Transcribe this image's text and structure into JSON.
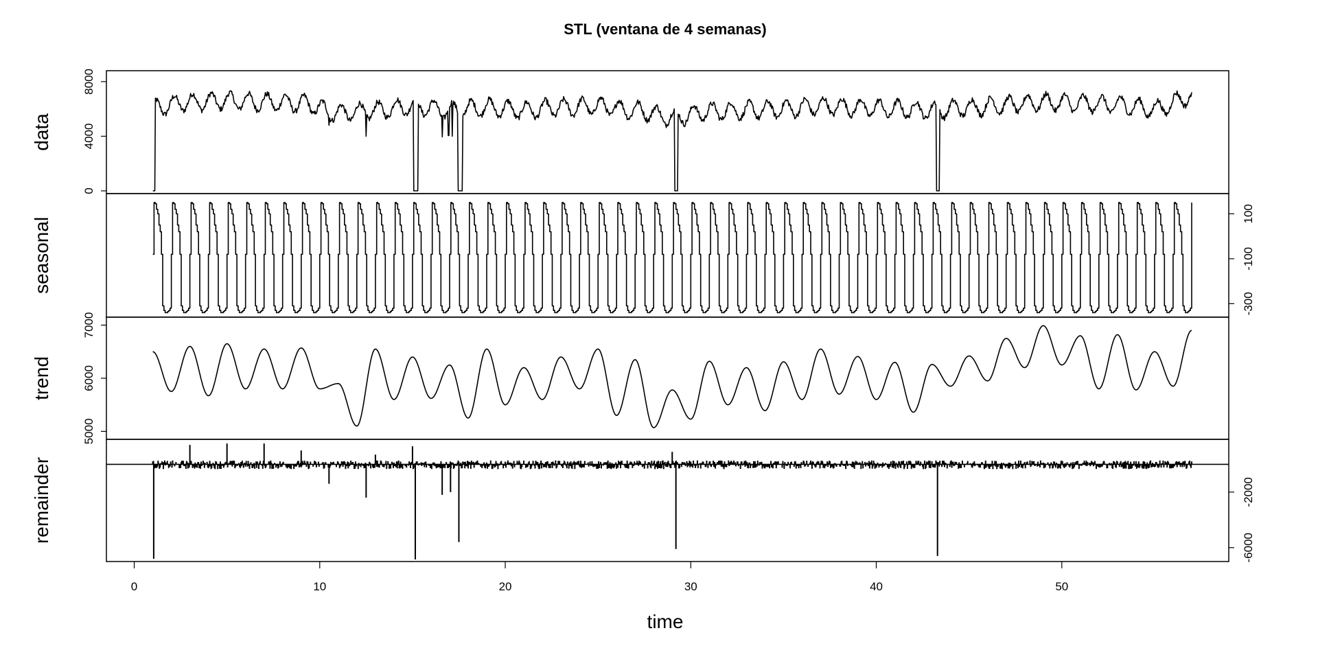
{
  "chart_data": {
    "type": "line",
    "title": "STL (ventana de 4 semanas)",
    "xlabel": "time",
    "x_range": [
      1,
      57
    ],
    "xlim": [
      -1.5,
      59
    ],
    "x_ticks": [
      0,
      10,
      20,
      30,
      40,
      50
    ],
    "x_tick_labels": [
      "0",
      "10",
      "20",
      "30",
      "40",
      "50"
    ],
    "panels": [
      {
        "name": "data",
        "label": "data",
        "axis_side": "left",
        "ylim": [
          -200,
          8800
        ],
        "y_ticks": [
          0,
          4000,
          8000
        ],
        "y_tick_labels": [
          "0",
          "4000",
          "8000"
        ],
        "dropouts": [
          {
            "start": 1.0,
            "end": 1.12,
            "value": 0
          },
          {
            "start": 15.06,
            "end": 15.3,
            "value": 0
          },
          {
            "start": 17.45,
            "end": 17.7,
            "value": 0
          },
          {
            "start": 29.12,
            "end": 29.3,
            "value": 0
          },
          {
            "start": 43.22,
            "end": 43.42,
            "value": 0
          }
        ],
        "dips": [
          {
            "x": 12.5,
            "value": 4000
          },
          {
            "x": 16.6,
            "value": 3950
          },
          {
            "x": 16.95,
            "value": 4050
          },
          {
            "x": 17.15,
            "value": 4000
          },
          {
            "x": 10.5,
            "value": 4800
          }
        ],
        "base_level_points": {
          "x": [
            1,
            3,
            5,
            7,
            9,
            11,
            13,
            15,
            17,
            19,
            21,
            23,
            25,
            27,
            29,
            31,
            33,
            35,
            37,
            39,
            41,
            43,
            45,
            47,
            49,
            51,
            53,
            55,
            57
          ],
          "y": [
            6100,
            6500,
            6600,
            6500,
            6400,
            5700,
            5900,
            6200,
            5900,
            6100,
            5900,
            6100,
            6200,
            5900,
            5400,
            5800,
            5900,
            6000,
            6200,
            6100,
            6000,
            5900,
            6100,
            6300,
            6500,
            6400,
            6300,
            6000,
            6900
          ]
        }
      },
      {
        "name": "seasonal",
        "label": "seasonal",
        "axis_side": "right",
        "ylim": [
          -360,
          190
        ],
        "y_ticks": [
          -300,
          -100,
          100
        ],
        "y_tick_labels": [
          "-300",
          "-100",
          "100"
        ],
        "period_weeks": 1,
        "cycles": 56,
        "weekly_pattern": [
          -80,
          150,
          145,
          120,
          100,
          50,
          20,
          -80,
          -310,
          -330,
          -340,
          -340,
          -335,
          -330,
          -320
        ]
      },
      {
        "name": "trend",
        "label": "trend",
        "axis_side": "left",
        "ylim": [
          4850,
          7150
        ],
        "y_ticks": [
          5000,
          6000,
          7000
        ],
        "y_tick_labels": [
          "5000",
          "6000",
          "7000"
        ],
        "x": [
          1,
          2,
          3,
          4,
          5,
          6,
          7,
          8,
          9,
          10,
          11,
          12,
          13,
          14,
          15,
          16,
          17,
          18,
          19,
          20,
          21,
          22,
          23,
          24,
          25,
          26,
          27,
          28,
          29,
          30,
          31,
          32,
          33,
          34,
          35,
          36,
          37,
          38,
          39,
          40,
          41,
          42,
          43,
          44,
          45,
          46,
          47,
          48,
          49,
          50,
          51,
          52,
          53,
          54,
          55,
          56,
          57
        ],
        "y": [
          6500,
          5750,
          6600,
          5670,
          6650,
          5800,
          6550,
          5800,
          6570,
          5800,
          5900,
          5100,
          6550,
          5600,
          6400,
          5620,
          6250,
          5250,
          6550,
          5500,
          6200,
          5600,
          6400,
          5800,
          6550,
          5300,
          6350,
          5070,
          5780,
          5230,
          6320,
          5500,
          6200,
          5390,
          6310,
          5600,
          6550,
          5700,
          6410,
          5600,
          6300,
          5360,
          6260,
          5850,
          6420,
          5950,
          6750,
          6200,
          6990,
          6250,
          6800,
          5800,
          6820,
          5780,
          6500,
          5850,
          6900
        ]
      },
      {
        "name": "remainder",
        "label": "remainder",
        "axis_side": "right",
        "ylim": [
          -7000,
          1800
        ],
        "y_ticks": [
          -6000,
          -2000
        ],
        "y_tick_labels": [
          "-6000",
          "-2000"
        ],
        "spikes": [
          {
            "x": 1.05,
            "value": -6800
          },
          {
            "x": 15.15,
            "value": -6850
          },
          {
            "x": 17.5,
            "value": -5600
          },
          {
            "x": 29.2,
            "value": -6100
          },
          {
            "x": 43.3,
            "value": -6600
          },
          {
            "x": 12.5,
            "value": -2400
          },
          {
            "x": 16.6,
            "value": -2200
          },
          {
            "x": 17.05,
            "value": -2000
          },
          {
            "x": 10.5,
            "value": -1400
          },
          {
            "x": 3.0,
            "value": 1400
          },
          {
            "x": 5.0,
            "value": 1500
          },
          {
            "x": 7.0,
            "value": 1500
          },
          {
            "x": 9.0,
            "value": 1000
          },
          {
            "x": 15.0,
            "value": 1300
          },
          {
            "x": 29.0,
            "value": 900
          },
          {
            "x": 13.0,
            "value": 700
          }
        ],
        "noise_amplitude": 450
      }
    ]
  }
}
